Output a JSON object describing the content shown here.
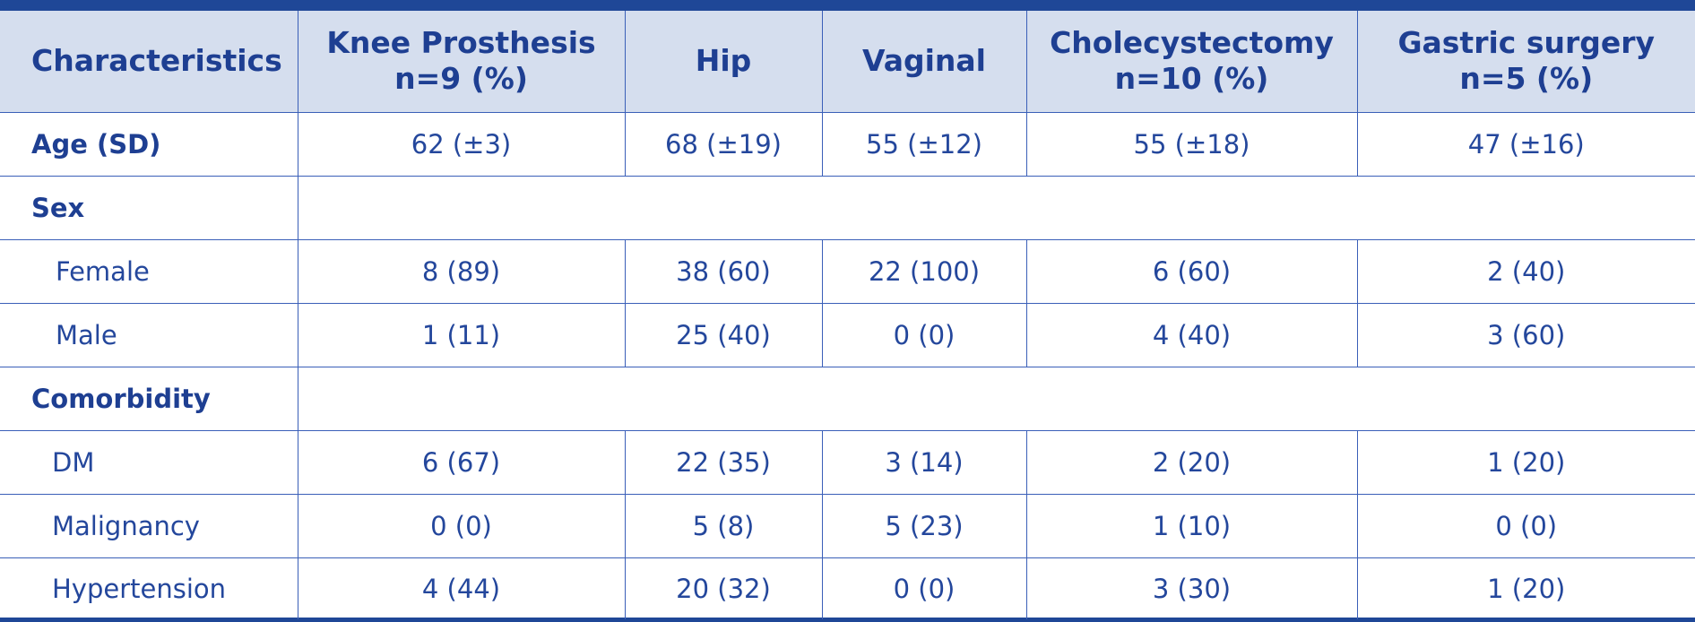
{
  "header": {
    "col0": "Characteristics",
    "col1_line1": "Knee Prosthesis",
    "col1_line2": "n=9 (%)",
    "col2": "Hip",
    "col3": "Vaginal",
    "col4_line1": "Cholecystectomy",
    "col4_line2": "n=10 (%)",
    "col5_line1": "Gastric surgery",
    "col5_line2": "n=5 (%)"
  },
  "rows": {
    "age": {
      "label": "Age (SD)",
      "v1": "62 (±3)",
      "v2": "68 (±19)",
      "v3": "55 (±12)",
      "v4": "55 (±18)",
      "v5": "47 (±16)"
    },
    "sex": {
      "label": "Sex"
    },
    "female": {
      "label": "Female",
      "v1": "8 (89)",
      "v2": "38 (60)",
      "v3": "22 (100)",
      "v4": "6 (60)",
      "v5": "2 (40)"
    },
    "male": {
      "label": "Male",
      "v1": "1 (11)",
      "v2": "25 (40)",
      "v3": "0 (0)",
      "v4": "4 (40)",
      "v5": "3 (60)"
    },
    "comorbidity": {
      "label": "Comorbidity"
    },
    "dm": {
      "label": "DM",
      "v1": "6 (67)",
      "v2": "22 (35)",
      "v3": "3 (14)",
      "v4": "2 (20)",
      "v5": "1 (20)"
    },
    "malignancy": {
      "label": "Malignancy",
      "v1": "0 (0)",
      "v2": "5 (8)",
      "v3": "5 (23)",
      "v4": "1 (10)",
      "v5": "0 (0)"
    },
    "hypertension": {
      "label": "Hypertension",
      "v1": "4 (44)",
      "v2": "20 (32)",
      "v3": "0 (0)",
      "v4": "3 (30)",
      "v5": "1 (20)"
    }
  },
  "colors": {
    "header_bg": "#d5deee",
    "border": "#3a5fb8",
    "text": "#1f3f8f",
    "top_bar": "#1f4797"
  }
}
